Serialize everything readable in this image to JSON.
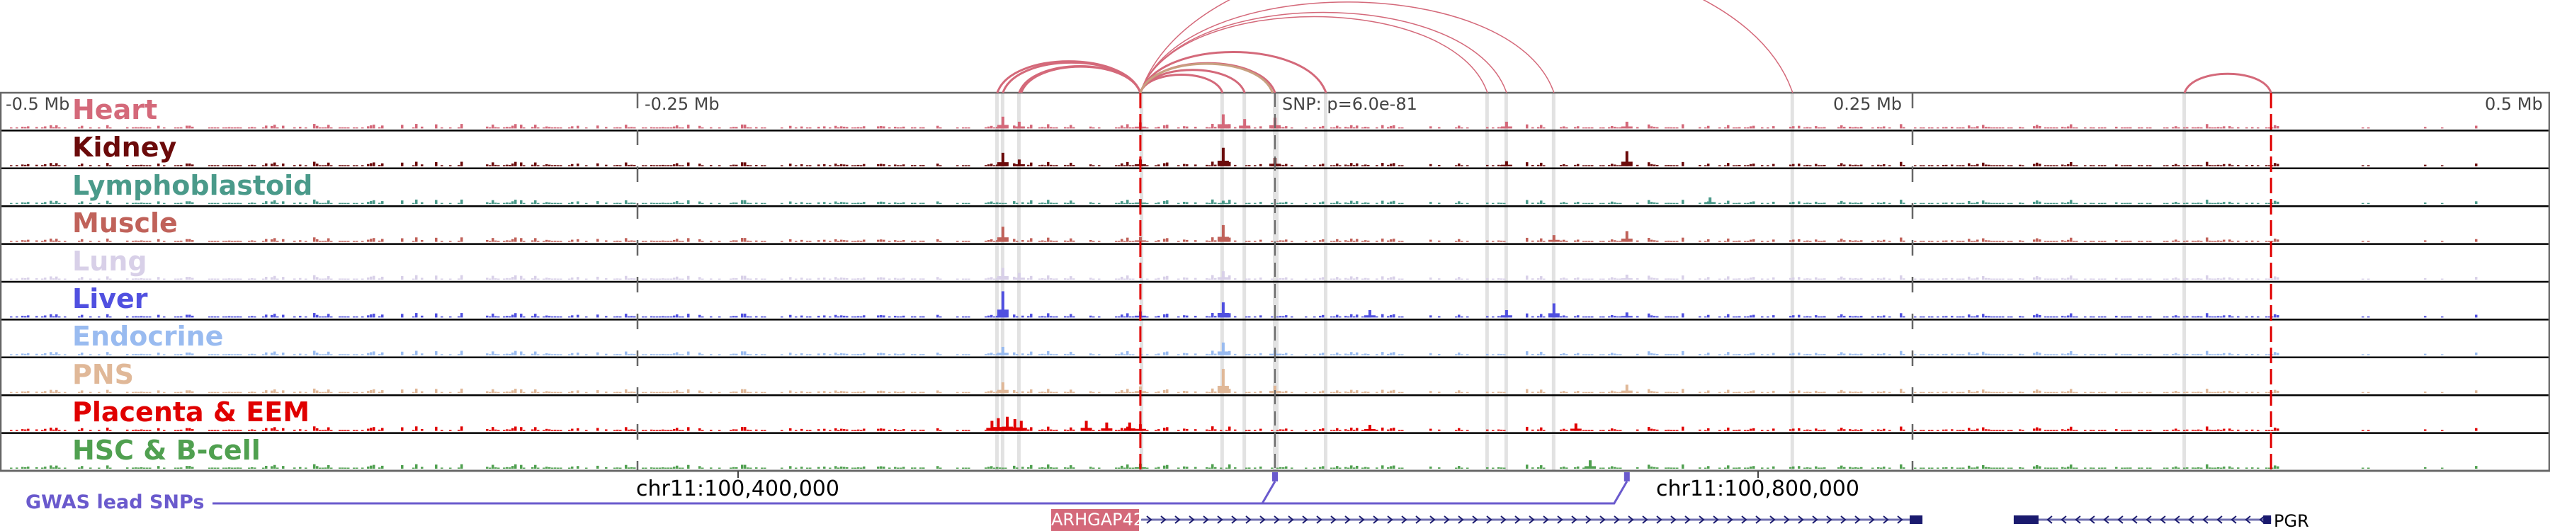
{
  "axis": {
    "ticks": [
      {
        "label": "-0.5 Mb",
        "kb": -500
      },
      {
        "label": "-0.25 Mb",
        "kb": -250
      },
      {
        "label": "0.25 Mb",
        "kb": 250
      },
      {
        "label": "0.5 Mb",
        "kb": 500
      }
    ],
    "snp_label": "SNP: p=6.0e-81",
    "snp_kb": 0
  },
  "boundaries_kb": [
    -52.8,
    390.6
  ],
  "highlight_kb": [
    -108.9,
    -106.7,
    -100.3,
    -52.2,
    -20.6,
    -11.9,
    0,
    20,
    83.3,
    90.8,
    109.4,
    203,
    356.7
  ],
  "tracks": [
    {
      "name": "Heart",
      "color": "#d4697a",
      "peaks": [
        [
          -106.7,
          0.35
        ],
        [
          -20.3,
          0.42
        ],
        [
          -11.9,
          0.28
        ],
        [
          0,
          0.32
        ],
        [
          -52.8,
          0.18
        ],
        [
          90.8,
          0.2
        ],
        [
          138,
          0.2
        ],
        [
          -100.3,
          0.2
        ]
      ]
    },
    {
      "name": "Kidney",
      "color": "#6b0a0a",
      "peaks": [
        [
          -106.7,
          0.4
        ],
        [
          -20.3,
          0.55
        ],
        [
          138,
          0.45
        ],
        [
          0,
          0.25
        ],
        [
          -52.8,
          0.2
        ],
        [
          90.8,
          0.15
        ],
        [
          -100.3,
          0.2
        ]
      ]
    },
    {
      "name": "Lymphoblastoid",
      "color": "#4a9a8a",
      "peaks": [
        [
          170.6,
          0.2
        ],
        [
          -52.8,
          0.15
        ],
        [
          -20.3,
          0.1
        ]
      ]
    },
    {
      "name": "Muscle",
      "color": "#c0625a",
      "peaks": [
        [
          -106.7,
          0.45
        ],
        [
          -20.3,
          0.5
        ],
        [
          138,
          0.32
        ],
        [
          -52.8,
          0.15
        ],
        [
          109.4,
          0.2
        ]
      ]
    },
    {
      "name": "Lung",
      "color": "#d8d0e8",
      "peaks": [
        [
          -106.7,
          0.35
        ],
        [
          -20.3,
          0.25
        ],
        [
          -100.3,
          0.2
        ],
        [
          138,
          0.15
        ]
      ]
    },
    {
      "name": "Liver",
      "color": "#5050e0",
      "peaks": [
        [
          -106.7,
          0.78
        ],
        [
          -20.3,
          0.45
        ],
        [
          109.4,
          0.42
        ],
        [
          37.2,
          0.22
        ],
        [
          90.8,
          0.22
        ],
        [
          -52.8,
          0.18
        ],
        [
          138,
          0.15
        ]
      ]
    },
    {
      "name": "Endocrine",
      "color": "#99bbf0",
      "peaks": [
        [
          -20.3,
          0.38
        ],
        [
          -106.7,
          0.25
        ],
        [
          0,
          0.15
        ]
      ]
    },
    {
      "name": "PNS",
      "color": "#e0b898",
      "peaks": [
        [
          -20.3,
          0.72
        ],
        [
          -106.7,
          0.32
        ],
        [
          138,
          0.25
        ],
        [
          0,
          0.22
        ],
        [
          -52.8,
          0.2
        ]
      ]
    },
    {
      "name": "Placenta & EEM",
      "color": "#e00000",
      "peaks": [
        [
          -111,
          0.3
        ],
        [
          -108.5,
          0.38
        ],
        [
          -105,
          0.42
        ],
        [
          -102,
          0.35
        ],
        [
          -99.5,
          0.3
        ],
        [
          -74,
          0.3
        ],
        [
          -66,
          0.25
        ],
        [
          -57,
          0.25
        ],
        [
          -52.8,
          0.2
        ],
        [
          118,
          0.22
        ],
        [
          37.2,
          0.18
        ]
      ]
    },
    {
      "name": "HSC & B-cell",
      "color": "#50a050",
      "peaks": [
        [
          123.6,
          0.25
        ],
        [
          -52.8,
          0.15
        ]
      ]
    }
  ],
  "arcs_kb": [
    [
      -108.9,
      -52.8
    ],
    [
      -106.7,
      -52.8
    ],
    [
      -100.3,
      -52.8
    ],
    [
      -99.5,
      -52.8
    ],
    [
      -52.8,
      -20.6
    ],
    [
      -52.8,
      -11.9
    ],
    [
      -52.8,
      0
    ],
    [
      -52.8,
      20
    ],
    [
      -52.8,
      83.3
    ],
    [
      -52.8,
      90.8
    ],
    [
      -52.8,
      109.4
    ],
    [
      -52.8,
      203
    ],
    [
      -52.8,
      -1
    ],
    [
      356.7,
      390.6
    ]
  ],
  "arc_color": "#d4697a",
  "coords": {
    "left": "chr11:100,400,000",
    "right": "chr11:100,800,000"
  },
  "gwas": {
    "label": "GWAS lead SNPs",
    "color": "#6a5acd",
    "snps_kb": [
      0,
      138
    ]
  },
  "genes": [
    {
      "name": "ARHGAP42",
      "strand": "+",
      "start_kb": -52.5,
      "end_kb": 253.9
    },
    {
      "name": "PGR",
      "strand": "-",
      "start_kb": 289.7,
      "end_kb": 390.6
    }
  ]
}
